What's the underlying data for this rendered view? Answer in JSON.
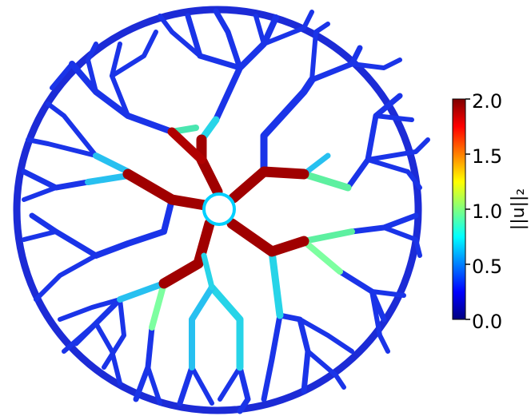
{
  "colorbar": {
    "title": "||u||₂",
    "ticks": [
      "0.0",
      "0.5",
      "1.0",
      "1.5",
      "2.0"
    ],
    "range": [
      0.0,
      2.0
    ],
    "colormap": [
      "#00007f",
      "#0000ff",
      "#007fff",
      "#00ffff",
      "#7fff7f",
      "#ffff00",
      "#ff7f00",
      "#ff0000",
      "#7f0000"
    ]
  }
}
